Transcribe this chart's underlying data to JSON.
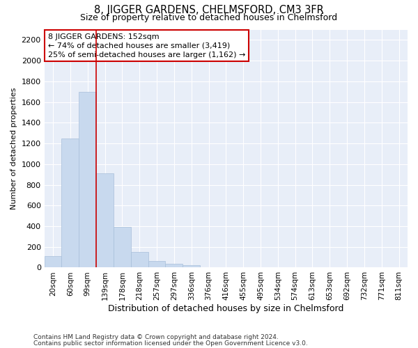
{
  "title": "8, JIGGER GARDENS, CHELMSFORD, CM3 3FR",
  "subtitle": "Size of property relative to detached houses in Chelmsford",
  "xlabel": "Distribution of detached houses by size in Chelmsford",
  "ylabel": "Number of detached properties",
  "bar_color": "#c8d9ee",
  "bar_edgecolor": "#a8bfda",
  "background_color": "#ffffff",
  "plot_background_color": "#e8eef8",
  "grid_color": "#ffffff",
  "categories": [
    "20sqm",
    "60sqm",
    "99sqm",
    "139sqm",
    "178sqm",
    "218sqm",
    "257sqm",
    "297sqm",
    "336sqm",
    "376sqm",
    "416sqm",
    "455sqm",
    "495sqm",
    "534sqm",
    "574sqm",
    "613sqm",
    "653sqm",
    "692sqm",
    "732sqm",
    "771sqm",
    "811sqm"
  ],
  "values": [
    110,
    1250,
    1700,
    910,
    390,
    150,
    65,
    35,
    25,
    0,
    0,
    0,
    0,
    0,
    0,
    0,
    0,
    0,
    0,
    0,
    0
  ],
  "ylim": [
    0,
    2300
  ],
  "yticks": [
    0,
    200,
    400,
    600,
    800,
    1000,
    1200,
    1400,
    1600,
    1800,
    2000,
    2200
  ],
  "annotation_text": "8 JIGGER GARDENS: 152sqm\n← 74% of detached houses are smaller (3,419)\n25% of semi-detached houses are larger (1,162) →",
  "annotation_box_color": "#ffffff",
  "annotation_box_edgecolor": "#cc0000",
  "vline_color": "#cc0000",
  "footnote1": "Contains HM Land Registry data © Crown copyright and database right 2024.",
  "footnote2": "Contains public sector information licensed under the Open Government Licence v3.0."
}
